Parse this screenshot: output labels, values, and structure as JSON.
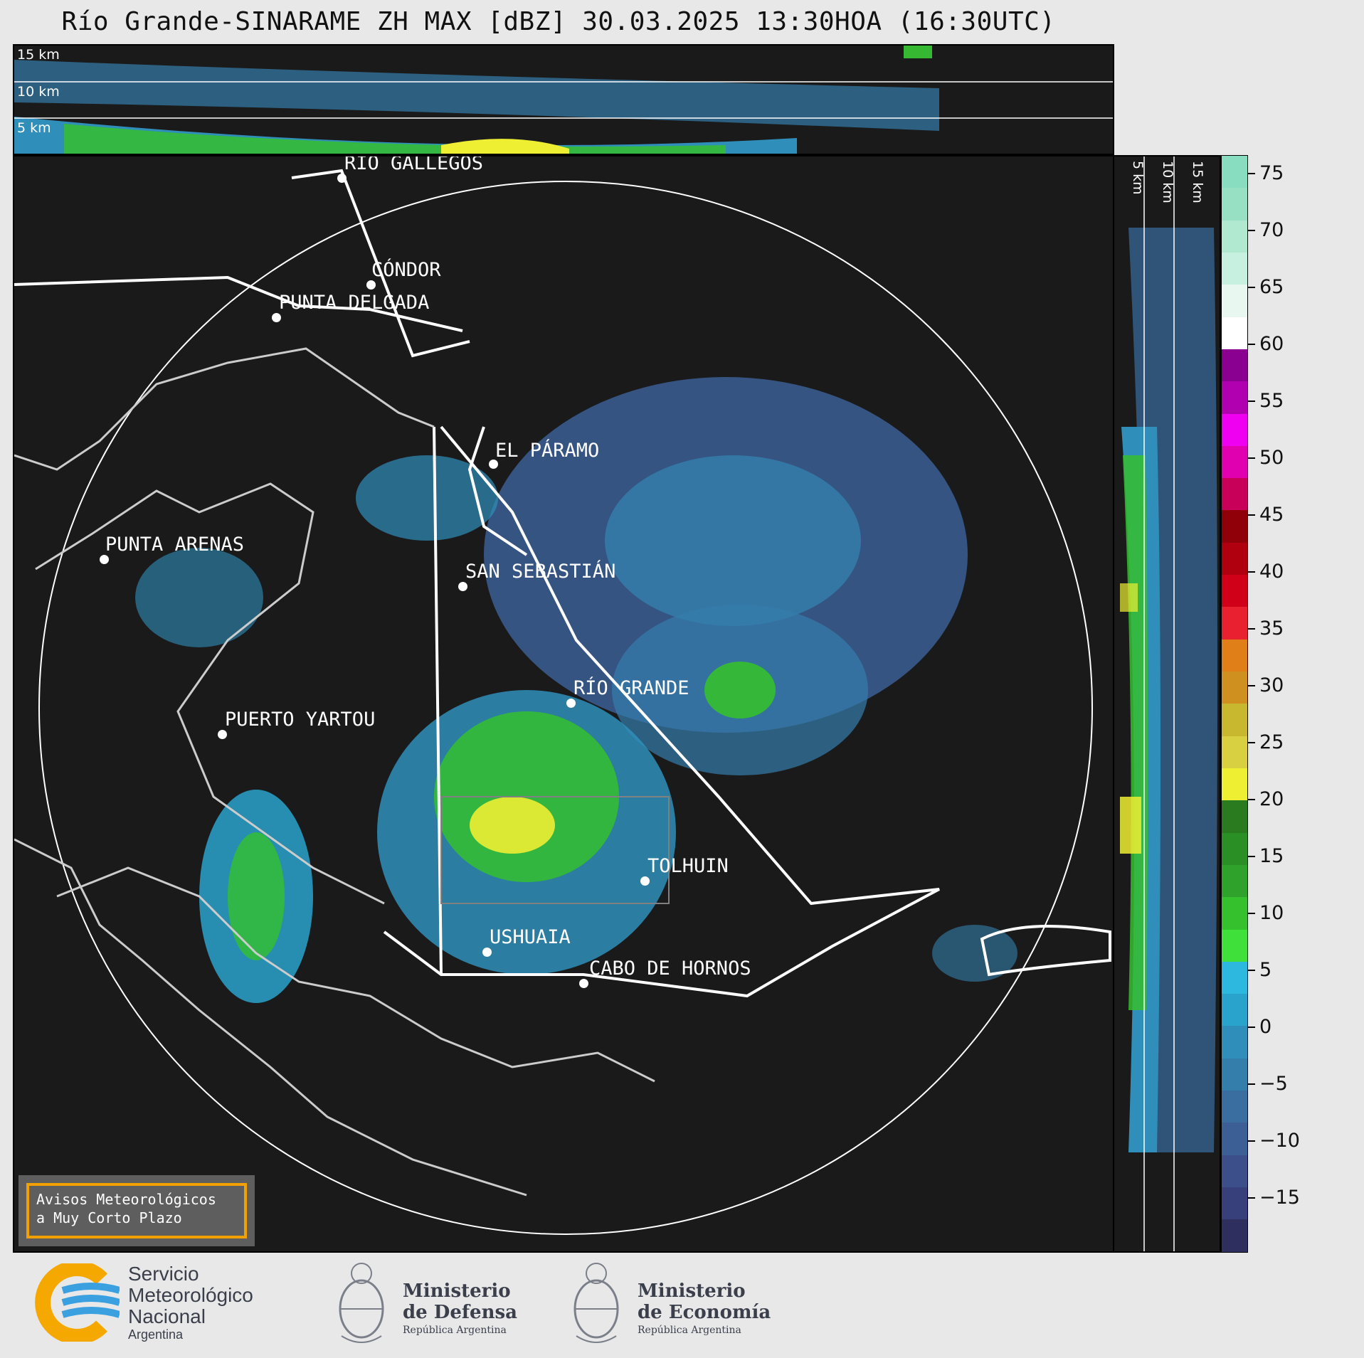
{
  "title": "Río Grande-SINARAME ZH MAX [dBZ] 30.03.2025 13:30HOA (16:30UTC)",
  "top_panel": {
    "height_labels": [
      "15 km",
      "10 km",
      "5 km"
    ]
  },
  "side_panel": {
    "height_labels": [
      "5 km",
      "10 km",
      "15 km"
    ]
  },
  "places": [
    {
      "name": "RÍO GALLEGOS"
    },
    {
      "name": "CÓNDOR"
    },
    {
      "name": "PUNTA DELGADA"
    },
    {
      "name": "EL PÁRAMO"
    },
    {
      "name": "PUNTA ARENAS"
    },
    {
      "name": "SAN SEBASTIÁN"
    },
    {
      "name": "RÍO GRANDE"
    },
    {
      "name": "PUERTO YARTOU"
    },
    {
      "name": "TOLHUIN"
    },
    {
      "name": "USHUAIA"
    },
    {
      "name": "CABO DE HORNOS"
    }
  ],
  "colorbar": {
    "unit": "dBZ",
    "ticks": [
      "75",
      "70",
      "65",
      "60",
      "55",
      "50",
      "45",
      "40",
      "35",
      "30",
      "25",
      "20",
      "15",
      "10",
      "5",
      "0",
      "−5",
      "−10",
      "−15"
    ],
    "colors": [
      "#2e2f5e",
      "#37407a",
      "#3c4f8a",
      "#3c5f95",
      "#3a6ea0",
      "#347eac",
      "#2f8fba",
      "#2aa3cc",
      "#2db8e0",
      "#3fe03a",
      "#35c02e",
      "#2ea22a",
      "#2a8f24",
      "#2a7a20",
      "#eeee33",
      "#d8d040",
      "#c8b830",
      "#d09020",
      "#e07e18",
      "#e82030",
      "#d00018",
      "#b00010",
      "#900008",
      "#c8005a",
      "#e000b0",
      "#f000f0",
      "#b000b0",
      "#8a0090",
      "#ffffff",
      "#e8f8f0",
      "#c8f0e0",
      "#b0e8d0",
      "#98e0c4",
      "#88dcc0"
    ]
  },
  "warning_box": {
    "line1": "Avisos Meteorológicos",
    "line2": "a Muy Corto Plazo"
  },
  "logos": {
    "smn": {
      "line1": "Servicio",
      "line2": "Meteorológico",
      "line3": "Nacional",
      "line4": "Argentina"
    },
    "defensa": {
      "line1": "Ministerio",
      "line2": "de Defensa",
      "line3": "República Argentina"
    },
    "economia": {
      "line1": "Ministerio",
      "line2": "de Economía",
      "line3": "República Argentina"
    }
  }
}
